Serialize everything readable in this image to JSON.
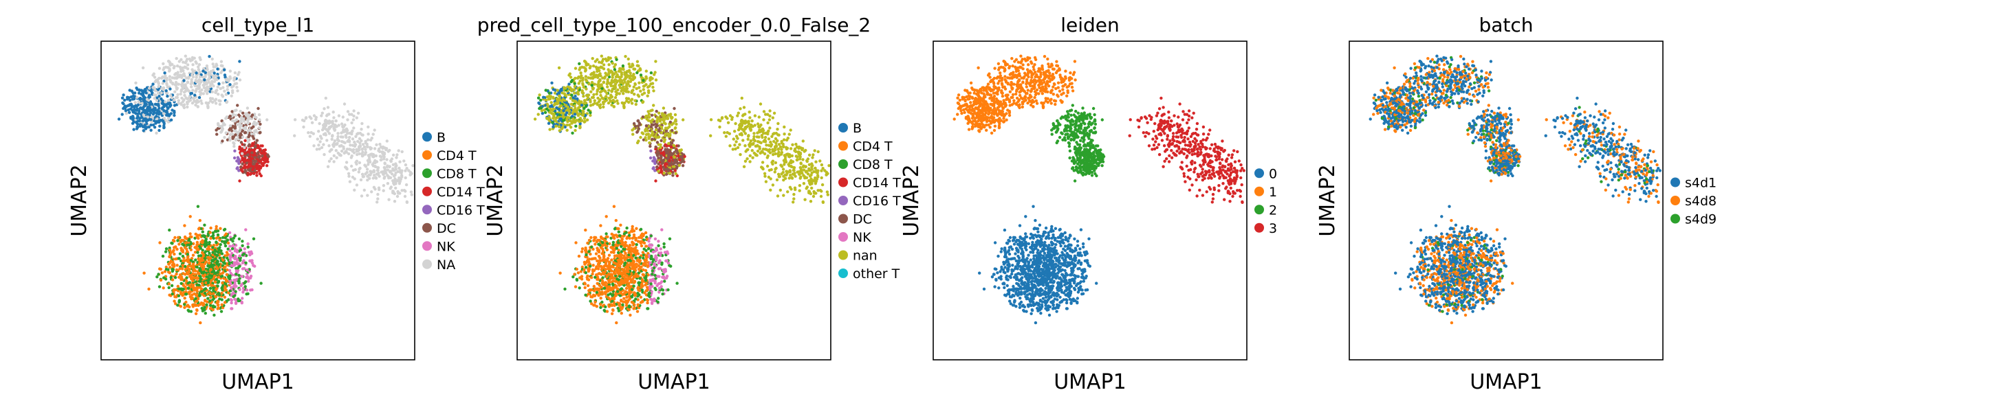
{
  "chart_data": [
    {
      "type": "scatter",
      "title": "cell_type_l1",
      "xlabel": "UMAP1",
      "ylabel": "UMAP2",
      "grid": false,
      "ticks": false,
      "legend_position": "right",
      "legend": [
        {
          "label": "B",
          "color": "#1f77b4"
        },
        {
          "label": "CD4 T",
          "color": "#ff7f0e"
        },
        {
          "label": "CD8 T",
          "color": "#2ca02c"
        },
        {
          "label": "CD14 T",
          "color": "#d62728"
        },
        {
          "label": "CD16 T",
          "color": "#9467bd"
        },
        {
          "label": "DC",
          "color": "#8c564b"
        },
        {
          "label": "NK",
          "color": "#e377c2"
        },
        {
          "label": "NA",
          "color": "#d3d3d3"
        }
      ]
    },
    {
      "type": "scatter",
      "title": "pred_cell_type_100_encoder_0.0_False_2",
      "xlabel": "UMAP1",
      "ylabel": "UMAP2",
      "grid": false,
      "ticks": false,
      "legend_position": "right",
      "legend": [
        {
          "label": "B",
          "color": "#1f77b4"
        },
        {
          "label": "CD4 T",
          "color": "#ff7f0e"
        },
        {
          "label": "CD8 T",
          "color": "#2ca02c"
        },
        {
          "label": "CD14 T",
          "color": "#d62728"
        },
        {
          "label": "CD16 T",
          "color": "#9467bd"
        },
        {
          "label": "DC",
          "color": "#8c564b"
        },
        {
          "label": "NK",
          "color": "#e377c2"
        },
        {
          "label": "nan",
          "color": "#bcbd22"
        },
        {
          "label": "other T",
          "color": "#17becf"
        }
      ]
    },
    {
      "type": "scatter",
      "title": "leiden",
      "xlabel": "UMAP1",
      "ylabel": "UMAP2",
      "grid": false,
      "ticks": false,
      "legend_position": "right",
      "legend": [
        {
          "label": "0",
          "color": "#1f77b4"
        },
        {
          "label": "1",
          "color": "#ff7f0e"
        },
        {
          "label": "2",
          "color": "#2ca02c"
        },
        {
          "label": "3",
          "color": "#d62728"
        }
      ]
    },
    {
      "type": "scatter",
      "title": "batch",
      "xlabel": "UMAP1",
      "ylabel": "UMAP2",
      "grid": false,
      "ticks": false,
      "legend_position": "right",
      "legend": [
        {
          "label": "s4d1",
          "color": "#1f77b4"
        },
        {
          "label": "s4d8",
          "color": "#ff7f0e"
        },
        {
          "label": "s4d9",
          "color": "#2ca02c"
        }
      ]
    }
  ]
}
